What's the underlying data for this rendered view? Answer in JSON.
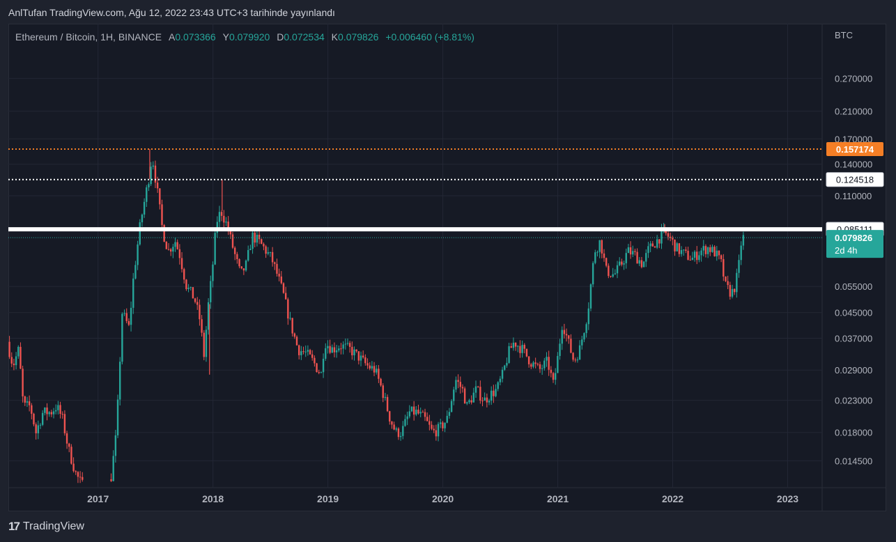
{
  "caption": "AnlTufan TradingView.com, Ağu 12, 2022 23:43 UTC+3 tarihinde yayınlandı",
  "legend": {
    "symbol": "Ethereum / Bitcoin, 1H, BINANCE",
    "open_label": "A",
    "open": "0.073366",
    "high_label": "Y",
    "high": "0.079920",
    "low_label": "D",
    "low": "0.072534",
    "close_label": "K",
    "close": "0.079826",
    "change": "+0.006460 (+8.81%)"
  },
  "footer": {
    "brand": "TradingView",
    "mark": "17"
  },
  "colors": {
    "up": "#26a69a",
    "down": "#ef5350",
    "background": "#161a25",
    "grid": "#232735",
    "axis_text": "#b2b5be",
    "orange_line": "#f57f26",
    "price_label_bg": "#26a69a"
  },
  "chart_data": {
    "type": "candlestick",
    "y_scale": "log",
    "ylim": [
      0.0118,
      0.41
    ],
    "xlim": [
      2016.22,
      2023.3
    ],
    "y_unit": "BTC",
    "y_ticks": [
      "0.270000",
      "0.210000",
      "0.170000",
      "0.140000",
      "0.110000",
      "0.055000",
      "0.045000",
      "0.037000",
      "0.029000",
      "0.023000",
      "0.018000",
      "0.014500"
    ],
    "x_ticks": [
      "2017",
      "2018",
      "2019",
      "2020",
      "2021",
      "2022",
      "2023"
    ],
    "horizontal_lines": [
      {
        "value": 0.157174,
        "label": "0.157174",
        "style": "dotted",
        "color": "#f57f26"
      },
      {
        "value": 0.124518,
        "label": "0.124518",
        "style": "dotted",
        "color": "#ffffff"
      },
      {
        "value": 0.085111,
        "label": "0.085111",
        "style": "solid-thick",
        "color": "#ffffff"
      }
    ],
    "last_price": {
      "value": 0.079826,
      "label": "0.079826",
      "countdown": "2d 4h"
    },
    "price_path": [
      [
        2016.22,
        0.036
      ],
      [
        2016.27,
        0.03
      ],
      [
        2016.32,
        0.034
      ],
      [
        2016.36,
        0.022
      ],
      [
        2016.42,
        0.022
      ],
      [
        2016.47,
        0.018
      ],
      [
        2016.53,
        0.021
      ],
      [
        2016.6,
        0.021
      ],
      [
        2016.65,
        0.022
      ],
      [
        2016.7,
        0.02
      ],
      [
        2016.75,
        0.016
      ],
      [
        2016.82,
        0.013
      ],
      [
        2016.87,
        0.0121
      ],
      [
        2016.95,
        0.0118
      ],
      [
        2017.05,
        0.0118
      ],
      [
        2017.12,
        0.0125
      ],
      [
        2017.17,
        0.018
      ],
      [
        2017.22,
        0.045
      ],
      [
        2017.28,
        0.04
      ],
      [
        2017.32,
        0.06
      ],
      [
        2017.38,
        0.09
      ],
      [
        2017.45,
        0.125
      ],
      [
        2017.48,
        0.15
      ],
      [
        2017.52,
        0.118
      ],
      [
        2017.57,
        0.085
      ],
      [
        2017.62,
        0.072
      ],
      [
        2017.68,
        0.078
      ],
      [
        2017.72,
        0.07
      ],
      [
        2017.78,
        0.055
      ],
      [
        2017.85,
        0.05
      ],
      [
        2017.9,
        0.042
      ],
      [
        2017.93,
        0.032
      ],
      [
        2017.97,
        0.048
      ],
      [
        2018.0,
        0.06
      ],
      [
        2018.04,
        0.09
      ],
      [
        2018.08,
        0.098
      ],
      [
        2018.13,
        0.088
      ],
      [
        2018.2,
        0.07
      ],
      [
        2018.25,
        0.06
      ],
      [
        2018.3,
        0.065
      ],
      [
        2018.35,
        0.081
      ],
      [
        2018.4,
        0.078
      ],
      [
        2018.45,
        0.074
      ],
      [
        2018.52,
        0.068
      ],
      [
        2018.57,
        0.06
      ],
      [
        2018.62,
        0.052
      ],
      [
        2018.68,
        0.042
      ],
      [
        2018.75,
        0.034
      ],
      [
        2018.82,
        0.033
      ],
      [
        2018.88,
        0.031
      ],
      [
        2018.95,
        0.028
      ],
      [
        2018.98,
        0.036
      ],
      [
        2019.05,
        0.034
      ],
      [
        2019.12,
        0.035
      ],
      [
        2019.2,
        0.034
      ],
      [
        2019.28,
        0.032
      ],
      [
        2019.35,
        0.03
      ],
      [
        2019.42,
        0.029
      ],
      [
        2019.48,
        0.025
      ],
      [
        2019.55,
        0.02
      ],
      [
        2019.6,
        0.018
      ],
      [
        2019.65,
        0.018
      ],
      [
        2019.72,
        0.021
      ],
      [
        2019.78,
        0.021
      ],
      [
        2019.85,
        0.02
      ],
      [
        2019.92,
        0.018
      ],
      [
        2019.98,
        0.0185
      ],
      [
        2020.05,
        0.02
      ],
      [
        2020.12,
        0.027
      ],
      [
        2020.18,
        0.025
      ],
      [
        2020.22,
        0.022
      ],
      [
        2020.3,
        0.025
      ],
      [
        2020.37,
        0.023
      ],
      [
        2020.42,
        0.024
      ],
      [
        2020.48,
        0.025
      ],
      [
        2020.53,
        0.028
      ],
      [
        2020.58,
        0.033
      ],
      [
        2020.63,
        0.036
      ],
      [
        2020.7,
        0.034
      ],
      [
        2020.77,
        0.031
      ],
      [
        2020.85,
        0.029
      ],
      [
        2020.92,
        0.031
      ],
      [
        2020.97,
        0.026
      ],
      [
        2021.0,
        0.03
      ],
      [
        2021.05,
        0.042
      ],
      [
        2021.1,
        0.036
      ],
      [
        2021.15,
        0.031
      ],
      [
        2021.2,
        0.034
      ],
      [
        2021.27,
        0.045
      ],
      [
        2021.33,
        0.072
      ],
      [
        2021.38,
        0.078
      ],
      [
        2021.43,
        0.062
      ],
      [
        2021.5,
        0.06
      ],
      [
        2021.57,
        0.066
      ],
      [
        2021.62,
        0.072
      ],
      [
        2021.68,
        0.07
      ],
      [
        2021.75,
        0.065
      ],
      [
        2021.8,
        0.073
      ],
      [
        2021.87,
        0.078
      ],
      [
        2021.93,
        0.083
      ],
      [
        2021.98,
        0.08
      ],
      [
        2022.05,
        0.073
      ],
      [
        2022.12,
        0.07
      ],
      [
        2022.18,
        0.068
      ],
      [
        2022.25,
        0.072
      ],
      [
        2022.32,
        0.074
      ],
      [
        2022.38,
        0.071
      ],
      [
        2022.43,
        0.066
      ],
      [
        2022.47,
        0.055
      ],
      [
        2022.52,
        0.052
      ],
      [
        2022.55,
        0.055
      ],
      [
        2022.58,
        0.062
      ],
      [
        2022.61,
        0.079826
      ]
    ],
    "wick_notes": [
      {
        "x": 2017.45,
        "high": 0.157174
      },
      {
        "x": 2018.08,
        "high": 0.124518
      },
      {
        "x": 2017.97,
        "low": 0.028
      },
      {
        "x": 2021.93,
        "high": 0.0885
      }
    ]
  }
}
